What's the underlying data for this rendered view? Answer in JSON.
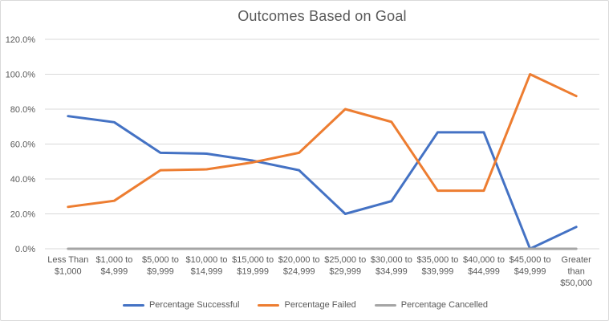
{
  "chart_data": {
    "type": "line",
    "title": "Outcomes Based on Goal",
    "categories": [
      {
        "label": "Less Than $1,000",
        "lines": [
          "Less Than",
          "$1,000"
        ]
      },
      {
        "label": "$1,000 to $4,999",
        "lines": [
          "$1,000 to",
          "$4,999"
        ]
      },
      {
        "label": "$5,000 to $9,999",
        "lines": [
          "$5,000 to",
          "$9,999"
        ]
      },
      {
        "label": "$10,000 to $14,999",
        "lines": [
          "$10,000 to",
          "$14,999"
        ]
      },
      {
        "label": "$15,000 to $19,999",
        "lines": [
          "$15,000 to",
          "$19,999"
        ]
      },
      {
        "label": "$20,000 to $24,999",
        "lines": [
          "$20,000 to",
          "$24,999"
        ]
      },
      {
        "label": "$25,000 to $29,999",
        "lines": [
          "$25,000 to",
          "$29,999"
        ]
      },
      {
        "label": "$30,000 to $34,999",
        "lines": [
          "$30,000 to",
          "$34,999"
        ]
      },
      {
        "label": "$35,000 to $39,999",
        "lines": [
          "$35,000 to",
          "$39,999"
        ]
      },
      {
        "label": "$40,000 to $44,999",
        "lines": [
          "$40,000 to",
          "$44,999"
        ]
      },
      {
        "label": "$45,000 to $49,999",
        "lines": [
          "$45,000 to",
          "$49,999"
        ]
      },
      {
        "label": "Greater than $50,000",
        "lines": [
          "Greater",
          "than",
          "$50,000"
        ]
      }
    ],
    "series": [
      {
        "name": "Percentage Successful",
        "color": "#4472C4",
        "values": [
          76,
          72.5,
          55,
          54.5,
          50.5,
          45,
          20,
          27.3,
          66.7,
          66.7,
          0,
          12.5
        ]
      },
      {
        "name": "Percentage Failed",
        "color": "#ED7D31",
        "values": [
          24,
          27.5,
          45,
          45.5,
          49.5,
          55,
          80,
          72.7,
          33.3,
          33.3,
          100,
          87.5
        ]
      },
      {
        "name": "Percentage Cancelled",
        "color": "#A5A5A5",
        "values": [
          0,
          0,
          0,
          0,
          0,
          0,
          0,
          0,
          0,
          0,
          0,
          0
        ]
      }
    ],
    "y_axis": {
      "min": 0,
      "max": 120,
      "step": 20,
      "tick_labels": [
        "0.0%",
        "20.0%",
        "40.0%",
        "60.0%",
        "80.0%",
        "100.0%",
        "120.0%"
      ]
    },
    "legend_position": "bottom",
    "grid": true,
    "styles": {
      "grid_color": "#D9D9D9",
      "text_color": "#595959",
      "background": "#FFFFFF",
      "border_color": "#D9D9D9"
    }
  }
}
